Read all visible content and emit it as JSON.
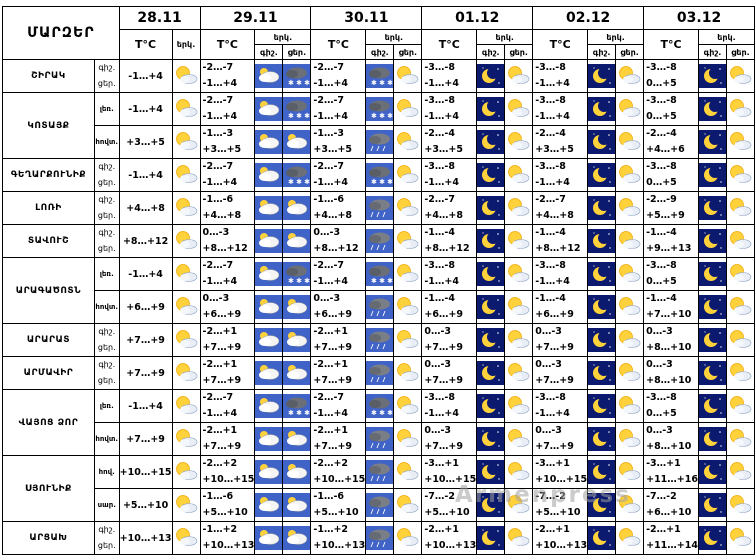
{
  "header": {
    "corner_label": "ՄԱՐԶԵՐ",
    "temp_label": "T°C",
    "sky_label": "երկ.",
    "night_label": "գիշ.",
    "day_label": "ցեր.",
    "dates": [
      "28.11",
      "29.11",
      "30.11",
      "01.12",
      "02.12",
      "03.12"
    ]
  },
  "rows": [
    {
      "region": "ՇԻՐԱԿ",
      "sub": "",
      "span": 1,
      "t0": "-1…+4",
      "t1n": "-2…-7",
      "t1d": "-1…+4",
      "t2n": "-2…-7",
      "t2d": "-1…+4",
      "t3n": "-3…-8",
      "t3d": "-1…+4",
      "t4n": "-3…-8",
      "t4d": "-1…+4",
      "t5n": "-3…-8",
      "t5d": "0…+5",
      "icons": [
        "sun-cloud",
        "cloud-sun",
        "cloud-snow",
        "cloud-snow",
        "sun-cloud",
        "moon",
        "sun-cloud",
        "moon",
        "sun-cloud",
        "moon",
        "sun-cloud"
      ]
    },
    {
      "region": "ԿՈՏԱՅՔ",
      "sub": "լեռ.",
      "span": 2,
      "t0": "-1…+4",
      "t1n": "-2…-7",
      "t1d": "-1…+4",
      "t2n": "-2…-7",
      "t2d": "-1…+4",
      "t3n": "-3…-8",
      "t3d": "-1…+4",
      "t4n": "-3…-8",
      "t4d": "-1…+4",
      "t5n": "-3…-8",
      "t5d": "0…+5",
      "icons": [
        "sun-cloud",
        "cloud-sun",
        "cloud-snow",
        "cloud-snow",
        "sun-cloud",
        "moon",
        "sun-cloud",
        "moon",
        "sun-cloud",
        "moon",
        "sun-cloud"
      ]
    },
    {
      "region": "",
      "sub": "հովտ.",
      "span": 0,
      "t0": "+3…+5",
      "t1n": "-1…-3",
      "t1d": "+3…+5",
      "t2n": "-1…-3",
      "t2d": "+3…+5",
      "t3n": "-2…-4",
      "t3d": "+3…+5",
      "t4n": "-2…-4",
      "t4d": "+3…+5",
      "t5n": "-2…-4",
      "t5d": "+4…+6",
      "icons": [
        "sun-cloud",
        "cloud-sun",
        "cloud-sun",
        "cloud-rain",
        "sun-cloud",
        "moon",
        "sun-cloud",
        "moon",
        "sun-cloud",
        "moon",
        "sun-cloud"
      ]
    },
    {
      "region": "ԳԵՂԱՐՔՈՒՆԻՔ",
      "sub": "",
      "span": 1,
      "t0": "-1…+4",
      "t1n": "-2…-7",
      "t1d": "-1…+4",
      "t2n": "-2…-7",
      "t2d": "-1…+4",
      "t3n": "-3…-8",
      "t3d": "-1…+4",
      "t4n": "-3…-8",
      "t4d": "-1…+4",
      "t5n": "-3…-8",
      "t5d": "0…+5",
      "icons": [
        "sun-cloud",
        "cloud-sun",
        "cloud-snow",
        "cloud-snow",
        "sun-cloud",
        "moon",
        "sun-cloud",
        "moon",
        "sun-cloud",
        "moon",
        "sun-cloud"
      ]
    },
    {
      "region": "ԼՈՌԻ",
      "sub": "",
      "span": 1,
      "t0": "+4…+8",
      "t1n": "-1…-6",
      "t1d": "+4…+8",
      "t2n": "-1…-6",
      "t2d": "+4…+8",
      "t3n": "-2…-7",
      "t3d": "+4…+8",
      "t4n": "-2…-7",
      "t4d": "+4…+8",
      "t5n": "-2…-9",
      "t5d": "+5…+9",
      "icons": [
        "sun-cloud",
        "cloud-sun",
        "cloud-sun",
        "cloud-rain",
        "sun-cloud",
        "moon",
        "sun-cloud",
        "moon",
        "sun-cloud",
        "moon",
        "sun-cloud"
      ]
    },
    {
      "region": "ՏԱՎՈՒՇ",
      "sub": "",
      "span": 1,
      "t0": "+8…+12",
      "t1n": "0…-3",
      "t1d": "+8…+12",
      "t2n": "0…-3",
      "t2d": "+8…+12",
      "t3n": "-1…-4",
      "t3d": "+8…+12",
      "t4n": "-1…-4",
      "t4d": "+8…+12",
      "t5n": "-1…-4",
      "t5d": "+9…+13",
      "icons": [
        "sun-cloud",
        "cloud-sun",
        "cloud-sun",
        "cloud-rain",
        "sun-cloud",
        "moon",
        "sun-cloud",
        "moon",
        "sun-cloud",
        "moon",
        "sun-cloud"
      ]
    },
    {
      "region": "ԱՐԱԳԱԾՈՏՆ",
      "sub": "լեռ.",
      "span": 2,
      "t0": "-1…+4",
      "t1n": "-2…-7",
      "t1d": "-1…+4",
      "t2n": "-2…-7",
      "t2d": "-1…+4",
      "t3n": "-3…-8",
      "t3d": "-1…+4",
      "t4n": "-3…-8",
      "t4d": "-1…+4",
      "t5n": "-3…-8",
      "t5d": "0…+5",
      "icons": [
        "sun-cloud",
        "cloud-sun",
        "cloud-snow",
        "cloud-snow",
        "sun-cloud",
        "moon",
        "sun-cloud",
        "moon",
        "sun-cloud",
        "moon",
        "sun-cloud"
      ]
    },
    {
      "region": "",
      "sub": "հովտ.",
      "span": 0,
      "t0": "+6…+9",
      "t1n": "0…-3",
      "t1d": "+6…+9",
      "t2n": "0…-3",
      "t2d": "+6…+9",
      "t3n": "-1…-4",
      "t3d": "+6…+9",
      "t4n": "-1…-4",
      "t4d": "+6…+9",
      "t5n": "-1…-4",
      "t5d": "+7…+10",
      "icons": [
        "sun-cloud",
        "cloud-sun",
        "cloud-sun",
        "cloud-rain",
        "sun-cloud",
        "moon",
        "sun-cloud",
        "moon",
        "sun-cloud",
        "moon",
        "sun-cloud"
      ]
    },
    {
      "region": "ԱՐԱՐԱՏ",
      "sub": "",
      "span": 1,
      "t0": "+7…+9",
      "t1n": "-2…+1",
      "t1d": "+7…+9",
      "t2n": "-2…+1",
      "t2d": "+7…+9",
      "t3n": "0…-3",
      "t3d": "+7…+9",
      "t4n": "0…-3",
      "t4d": "+7…+9",
      "t5n": "0…-3",
      "t5d": "+8…+10",
      "icons": [
        "sun-cloud",
        "cloud-sun",
        "cloud-sun",
        "cloud-rain",
        "sun-cloud",
        "moon",
        "sun-cloud",
        "moon",
        "sun-cloud",
        "moon",
        "sun-cloud"
      ]
    },
    {
      "region": "ԱՐՄԱՎԻՐ",
      "sub": "",
      "span": 1,
      "t0": "+7…+9",
      "t1n": "-2…+1",
      "t1d": "+7…+9",
      "t2n": "-2…+1",
      "t2d": "+7…+9",
      "t3n": "0…-3",
      "t3d": "+7…+9",
      "t4n": "0…-3",
      "t4d": "+7…+9",
      "t5n": "0…-3",
      "t5d": "+8…+10",
      "icons": [
        "sun-cloud",
        "cloud-sun",
        "cloud-sun",
        "cloud-rain",
        "sun-cloud",
        "moon",
        "sun-cloud",
        "moon",
        "sun-cloud",
        "moon",
        "sun-cloud"
      ]
    },
    {
      "region": "ՎԱՅՈՑ ՁՈՐ",
      "sub": "լեռ.",
      "span": 2,
      "t0": "-1…+4",
      "t1n": "-2…-7",
      "t1d": "-1…+4",
      "t2n": "-2…-7",
      "t2d": "-1…+4",
      "t3n": "-3…-8",
      "t3d": "-1…+4",
      "t4n": "-3…-8",
      "t4d": "-1…+4",
      "t5n": "-3…-8",
      "t5d": "0…+5",
      "icons": [
        "sun-cloud",
        "cloud-sun",
        "cloud-snow",
        "cloud-snow",
        "sun-cloud",
        "moon",
        "sun-cloud",
        "moon",
        "sun-cloud",
        "moon",
        "sun-cloud"
      ]
    },
    {
      "region": "",
      "sub": "հովտ.",
      "span": 0,
      "t0": "+7…+9",
      "t1n": "-2…+1",
      "t1d": "+7…+9",
      "t2n": "-2…+1",
      "t2d": "+7…+9",
      "t3n": "0…-3",
      "t3d": "+7…+9",
      "t4n": "0…-3",
      "t4d": "+7…+9",
      "t5n": "0…-3",
      "t5d": "+8…+10",
      "icons": [
        "sun-cloud",
        "cloud-sun",
        "cloud-sun",
        "cloud-rain",
        "sun-cloud",
        "moon",
        "sun-cloud",
        "moon",
        "sun-cloud",
        "moon",
        "sun-cloud"
      ]
    },
    {
      "region": "ՍՅՈՒՆԻՔ",
      "sub": "հով.",
      "span": 2,
      "t0": "+10…+15",
      "t1n": "-2…+2",
      "t1d": "+10…+15",
      "t2n": "-2…+2",
      "t2d": "+10…+15",
      "t3n": "-3…+1",
      "t3d": "+10…+15",
      "t4n": "-3…+1",
      "t4d": "+10…+15",
      "t5n": "-3…+1",
      "t5d": "+11…+16",
      "icons": [
        "sun-cloud",
        "cloud-sun",
        "cloud-sun",
        "cloud-rain",
        "sun-cloud",
        "moon",
        "sun-cloud",
        "moon",
        "sun-cloud",
        "moon",
        "sun-cloud"
      ]
    },
    {
      "region": "",
      "sub": "սար.",
      "span": 0,
      "t0": "+5…+10",
      "t1n": "-1…-6",
      "t1d": "+5…+10",
      "t2n": "-1…-6",
      "t2d": "+5…+10",
      "t3n": "-7…-2",
      "t3d": "+5…+10",
      "t4n": "-7…-2",
      "t4d": "+5…+10",
      "t5n": "-7…-2",
      "t5d": "+6…+10",
      "icons": [
        "sun-cloud",
        "cloud-sun",
        "cloud-sun",
        "cloud-rain",
        "sun-cloud",
        "moon",
        "sun-cloud",
        "moon",
        "sun-cloud",
        "moon",
        "sun-cloud"
      ]
    },
    {
      "region": "ԱՐՑԱԽ",
      "sub": "",
      "span": 1,
      "t0": "+10…+13",
      "t1n": "-1…+2",
      "t1d": "+10…+13",
      "t2n": "-1…+2",
      "t2d": "+10…+13",
      "t3n": "-2…+1",
      "t3d": "+10…+13",
      "t4n": "-2…+1",
      "t4d": "+10…+13",
      "t5n": "-2…+1",
      "t5d": "+11…+14",
      "icons": [
        "sun-cloud",
        "cloud-sun",
        "cloud-sun",
        "cloud-rain",
        "sun-cloud",
        "moon",
        "sun-cloud",
        "moon",
        "sun-cloud",
        "moon",
        "sun-cloud"
      ]
    }
  ],
  "watermark": "Armenpress"
}
